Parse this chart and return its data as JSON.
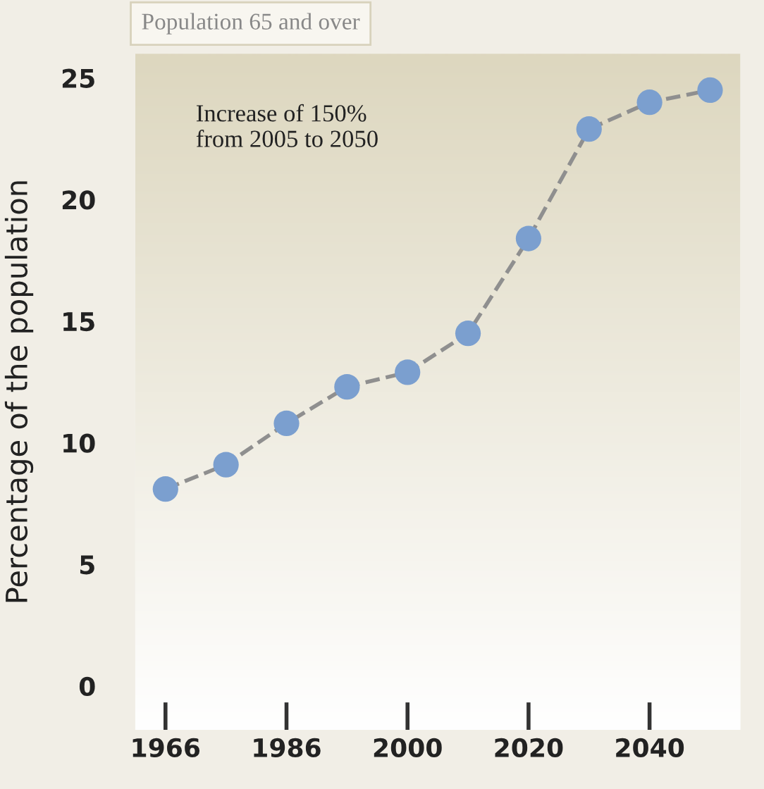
{
  "chart_data": {
    "type": "line",
    "title": "Population 65 and over",
    "ylabel": "Percentage of the population",
    "categories": [
      "1966",
      null,
      "1986",
      null,
      "2000",
      null,
      "2020",
      null,
      "2040",
      null
    ],
    "series": [
      {
        "color": "#7b9fcf",
        "values": [
          8.1,
          9.1,
          10.8,
          12.3,
          12.9,
          14.5,
          18.4,
          22.9,
          24.0,
          24.5
        ]
      }
    ],
    "ylim": [
      -1.8,
      26
    ],
    "yticks": [
      0,
      5,
      10,
      15,
      20,
      25
    ],
    "marker": "circle",
    "line_style": "dashed",
    "grid": false,
    "legend": false,
    "annotations": [
      "Increase of 150%\nfrom 2005 to 2050"
    ]
  }
}
